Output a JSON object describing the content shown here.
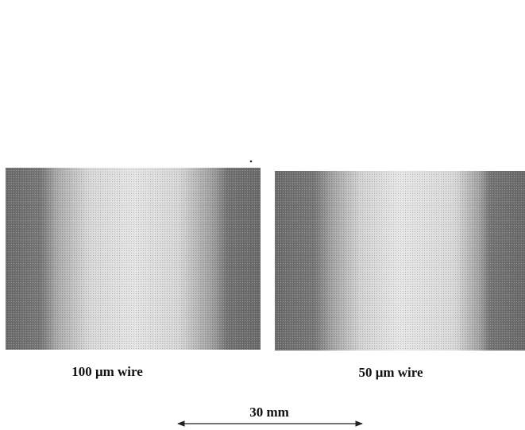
{
  "figure": {
    "panels": [
      {
        "caption": "100 μm wire"
      },
      {
        "caption": "50 μm wire"
      }
    ],
    "scale_bar": {
      "label": "30 mm"
    }
  }
}
